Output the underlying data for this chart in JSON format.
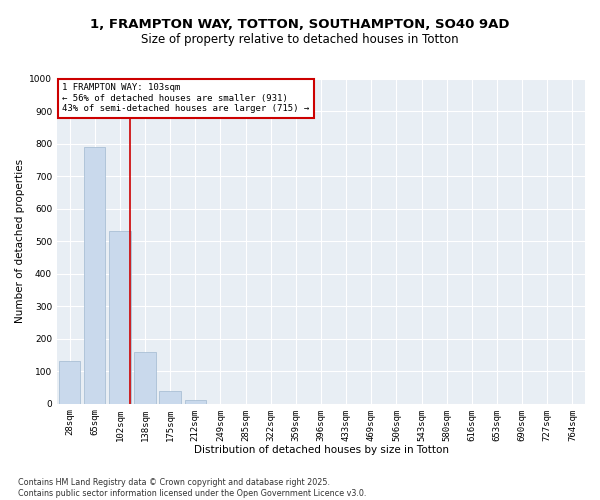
{
  "title1": "1, FRAMPTON WAY, TOTTON, SOUTHAMPTON, SO40 9AD",
  "title2": "Size of property relative to detached houses in Totton",
  "xlabel": "Distribution of detached houses by size in Totton",
  "ylabel": "Number of detached properties",
  "categories": [
    "28sqm",
    "65sqm",
    "102sqm",
    "138sqm",
    "175sqm",
    "212sqm",
    "249sqm",
    "285sqm",
    "322sqm",
    "359sqm",
    "396sqm",
    "433sqm",
    "469sqm",
    "506sqm",
    "543sqm",
    "580sqm",
    "616sqm",
    "653sqm",
    "690sqm",
    "727sqm",
    "764sqm"
  ],
  "values": [
    130,
    790,
    530,
    160,
    40,
    10,
    0,
    0,
    0,
    0,
    0,
    0,
    0,
    0,
    0,
    0,
    0,
    0,
    0,
    0,
    0
  ],
  "bar_color": "#c9d9ec",
  "bar_edge_color": "#a0b8d0",
  "vline_x_index": 2,
  "vline_color": "#cc0000",
  "annotation_line1": "1 FRAMPTON WAY: 103sqm",
  "annotation_line2": "← 56% of detached houses are smaller (931)",
  "annotation_line3": "43% of semi-detached houses are larger (715) →",
  "annotation_box_color": "#cc0000",
  "ylim": [
    0,
    1000
  ],
  "yticks": [
    0,
    100,
    200,
    300,
    400,
    500,
    600,
    700,
    800,
    900,
    1000
  ],
  "background_color": "#e8eef4",
  "grid_color": "#ffffff",
  "footer1": "Contains HM Land Registry data © Crown copyright and database right 2025.",
  "footer2": "Contains public sector information licensed under the Open Government Licence v3.0.",
  "title1_fontsize": 9.5,
  "title2_fontsize": 8.5,
  "xlabel_fontsize": 7.5,
  "ylabel_fontsize": 7.5,
  "tick_fontsize": 6.5,
  "annotation_fontsize": 6.5,
  "footer_fontsize": 5.8,
  "fig_bg": "#ffffff"
}
